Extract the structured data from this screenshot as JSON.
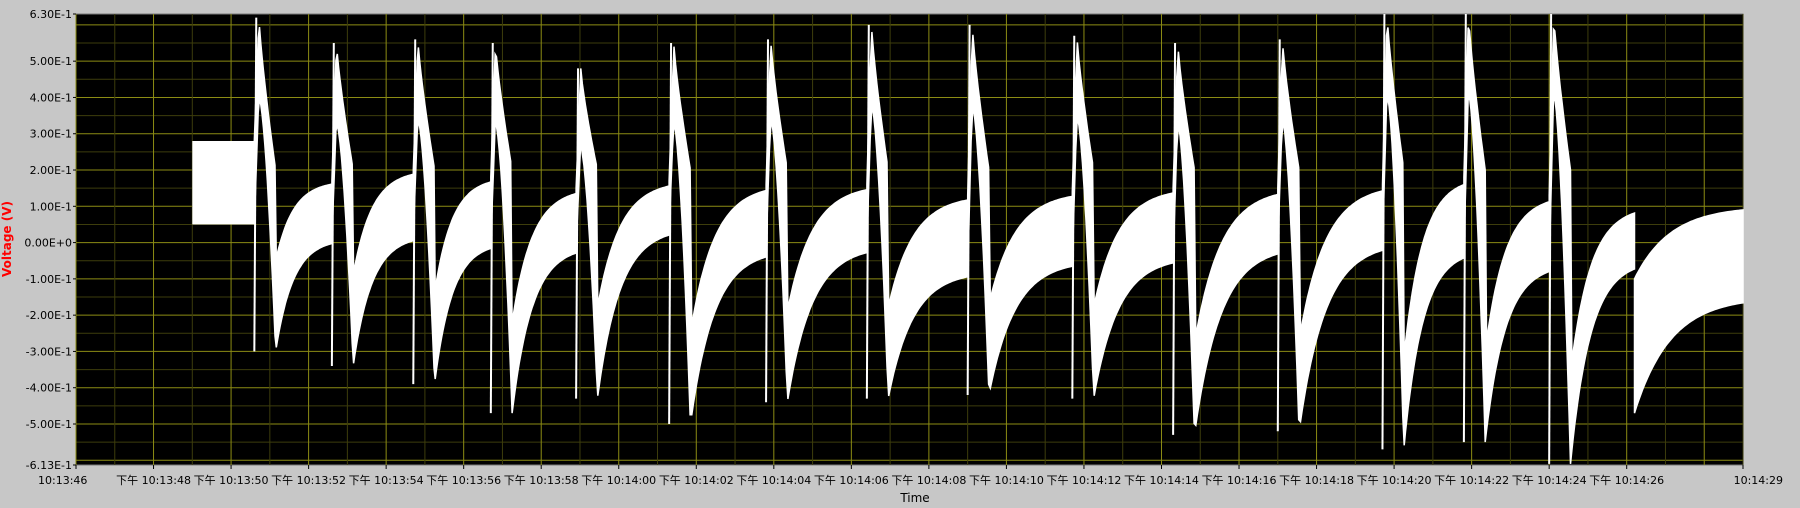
{
  "chart_data": {
    "type": "line",
    "xlabel": "Time",
    "ylabel": "Voltage (V)",
    "ylim": [
      -0.613,
      0.63
    ],
    "xlim_seconds_after_10_13_46": [
      0,
      43
    ],
    "grid": true,
    "y_ticks": [
      {
        "v": 0.63,
        "label": "6.30E-1"
      },
      {
        "v": 0.5,
        "label": "5.00E-1"
      },
      {
        "v": 0.4,
        "label": "4.00E-1"
      },
      {
        "v": 0.3,
        "label": "3.00E-1"
      },
      {
        "v": 0.2,
        "label": "2.00E-1"
      },
      {
        "v": 0.1,
        "label": "1.00E-1"
      },
      {
        "v": 0.0,
        "label": "0.00E+0"
      },
      {
        "v": -0.1,
        "label": "-1.00E-1"
      },
      {
        "v": -0.2,
        "label": "-2.00E-1"
      },
      {
        "v": -0.3,
        "label": "-3.00E-1"
      },
      {
        "v": -0.4,
        "label": "-4.00E-1"
      },
      {
        "v": -0.5,
        "label": "-5.00E-1"
      },
      {
        "v": -0.613,
        "label": "-6.13E-1"
      }
    ],
    "x_ticks": [
      {
        "t": 0,
        "label": "10:13:46"
      },
      {
        "t": 2,
        "label": "下午 10:13:48"
      },
      {
        "t": 4,
        "label": "下午 10:13:50"
      },
      {
        "t": 6,
        "label": "下午 10:13:52"
      },
      {
        "t": 8,
        "label": "下午 10:13:54"
      },
      {
        "t": 10,
        "label": "下午 10:13:56"
      },
      {
        "t": 12,
        "label": "下午 10:13:58"
      },
      {
        "t": 14,
        "label": "下午 10:14:00"
      },
      {
        "t": 16,
        "label": "下午 10:14:02"
      },
      {
        "t": 18,
        "label": "下午 10:14:04"
      },
      {
        "t": 20,
        "label": "下午 10:14:06"
      },
      {
        "t": 22,
        "label": "下午 10:14:08"
      },
      {
        "t": 24,
        "label": "下午 10:14:10"
      },
      {
        "t": 26,
        "label": "下午 10:14:12"
      },
      {
        "t": 28,
        "label": "下午 10:14:14"
      },
      {
        "t": 30,
        "label": "下午 10:14:16"
      },
      {
        "t": 32,
        "label": "下午 10:14:18"
      },
      {
        "t": 34,
        "label": "下午 10:14:20"
      },
      {
        "t": 36,
        "label": "下午 10:14:22"
      },
      {
        "t": 38,
        "label": "下午 10:14:24"
      },
      {
        "t": 40,
        "label": "下午 10:14:26"
      },
      {
        "t": 43,
        "label": "10:14:29"
      }
    ],
    "series": [
      {
        "color": "#ffffff",
        "start_block": {
          "t0": 3.0,
          "t1": 4.6,
          "high": 0.28,
          "low": 0.05
        },
        "pulses": [
          {
            "t": 4.6,
            "peak": 0.62,
            "trough": -0.3,
            "end_high": 0.17,
            "end_low": 0.01
          },
          {
            "t": 6.6,
            "peak": 0.55,
            "trough": -0.34,
            "end_high": 0.2,
            "end_low": 0.02
          },
          {
            "t": 8.7,
            "peak": 0.56,
            "trough": -0.39,
            "end_high": 0.18,
            "end_low": 0.0
          },
          {
            "t": 10.7,
            "peak": 0.55,
            "trough": -0.47,
            "end_high": 0.15,
            "end_low": -0.01
          },
          {
            "t": 12.9,
            "peak": 0.48,
            "trough": -0.43,
            "end_high": 0.17,
            "end_low": 0.04
          },
          {
            "t": 15.3,
            "peak": 0.55,
            "trough": -0.5,
            "end_high": 0.16,
            "end_low": -0.02
          },
          {
            "t": 17.8,
            "peak": 0.56,
            "trough": -0.44,
            "end_high": 0.16,
            "end_low": -0.01
          },
          {
            "t": 20.4,
            "peak": 0.6,
            "trough": -0.43,
            "end_high": 0.13,
            "end_low": -0.08
          },
          {
            "t": 23.0,
            "peak": 0.6,
            "trough": -0.42,
            "end_high": 0.14,
            "end_low": -0.05
          },
          {
            "t": 25.7,
            "peak": 0.57,
            "trough": -0.43,
            "end_high": 0.15,
            "end_low": -0.04
          },
          {
            "t": 28.3,
            "peak": 0.55,
            "trough": -0.53,
            "end_high": 0.15,
            "end_low": -0.01
          },
          {
            "t": 31.0,
            "peak": 0.56,
            "trough": -0.52,
            "end_high": 0.16,
            "end_low": 0.0
          },
          {
            "t": 33.7,
            "peak": 0.63,
            "trough": -0.57,
            "end_high": 0.18,
            "end_low": -0.02
          },
          {
            "t": 35.8,
            "peak": 0.63,
            "trough": -0.55,
            "end_high": 0.13,
            "end_low": -0.06
          },
          {
            "t": 38.0,
            "peak": 0.63,
            "trough": -0.61,
            "end_high": 0.1,
            "end_low": -0.05
          }
        ],
        "tail": {
          "t0": 40.2,
          "t1": 43.0,
          "start_high": -0.1,
          "start_low": -0.47,
          "end_high": 0.1,
          "end_low": -0.15
        }
      }
    ]
  }
}
